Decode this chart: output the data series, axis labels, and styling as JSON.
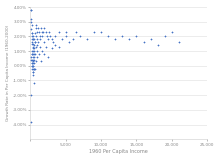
{
  "title": "",
  "xlabel": "1960 Per Capita Income",
  "ylabel": "Growth Rate in Per Capita Income (1960-2000)",
  "xlim": [
    0,
    25000
  ],
  "ylim": [
    -0.05,
    0.04
  ],
  "xticks": [
    0,
    5000,
    10000,
    15000,
    20000,
    25000
  ],
  "yticks": [
    -0.04,
    -0.03,
    -0.02,
    -0.01,
    0.0,
    0.01,
    0.02,
    0.03,
    0.04
  ],
  "marker_color": "#4472c4",
  "marker_size": 4,
  "points": [
    [
      130,
      0.032
    ],
    [
      145,
      0.025
    ],
    [
      160,
      0.038
    ],
    [
      180,
      0.02
    ],
    [
      200,
      0.022
    ],
    [
      220,
      0.018
    ],
    [
      240,
      0.015
    ],
    [
      260,
      0.028
    ],
    [
      280,
      0.01
    ],
    [
      290,
      0.016
    ],
    [
      300,
      0.022
    ],
    [
      310,
      0.008
    ],
    [
      320,
      0.012
    ],
    [
      330,
      0.018
    ],
    [
      340,
      0.006
    ],
    [
      350,
      0.01
    ],
    [
      360,
      0.02
    ],
    [
      380,
      0.013
    ],
    [
      390,
      0.018
    ],
    [
      400,
      0.008
    ],
    [
      420,
      0.015
    ],
    [
      440,
      0.003
    ],
    [
      460,
      0.006
    ],
    [
      480,
      0.01
    ],
    [
      500,
      0.014
    ],
    [
      520,
      0.018
    ],
    [
      540,
      0.004
    ],
    [
      560,
      0.008
    ],
    [
      580,
      0.012
    ],
    [
      600,
      0.016
    ],
    [
      120,
      -0.02
    ],
    [
      140,
      0.004
    ],
    [
      160,
      0.006
    ],
    [
      180,
      0.002
    ],
    [
      210,
      0.002
    ],
    [
      230,
      0.0
    ],
    [
      245,
      0.008
    ],
    [
      270,
      0.0
    ],
    [
      285,
      0.004
    ],
    [
      295,
      -0.002
    ],
    [
      315,
      -0.004
    ],
    [
      325,
      0.002
    ],
    [
      345,
      -0.002
    ],
    [
      355,
      0.0
    ],
    [
      375,
      0.004
    ],
    [
      395,
      -0.006
    ],
    [
      415,
      0.0
    ],
    [
      435,
      -0.004
    ],
    [
      455,
      -0.002
    ],
    [
      475,
      0.002
    ],
    [
      495,
      -0.002
    ],
    [
      515,
      -0.012
    ],
    [
      105,
      -0.038
    ],
    [
      650,
      0.022
    ],
    [
      700,
      0.016
    ],
    [
      750,
      0.026
    ],
    [
      800,
      0.02
    ],
    [
      850,
      0.028
    ],
    [
      900,
      0.018
    ],
    [
      950,
      0.014
    ],
    [
      1000,
      0.023
    ],
    [
      1100,
      0.026
    ],
    [
      1200,
      0.023
    ],
    [
      1300,
      0.02
    ],
    [
      1400,
      0.018
    ],
    [
      1500,
      0.026
    ],
    [
      1600,
      0.023
    ],
    [
      1700,
      0.02
    ],
    [
      1800,
      0.023
    ],
    [
      2000,
      0.026
    ],
    [
      2200,
      0.023
    ],
    [
      2400,
      0.02
    ],
    [
      2600,
      0.023
    ],
    [
      2800,
      0.02
    ],
    [
      3000,
      0.018
    ],
    [
      3200,
      0.016
    ],
    [
      3500,
      0.02
    ],
    [
      4000,
      0.023
    ],
    [
      4500,
      0.018
    ],
    [
      5000,
      0.02
    ],
    [
      5500,
      0.016
    ],
    [
      6000,
      0.018
    ],
    [
      6500,
      0.023
    ],
    [
      7000,
      0.02
    ],
    [
      8000,
      0.018
    ],
    [
      9000,
      0.023
    ],
    [
      10000,
      0.023
    ],
    [
      11000,
      0.02
    ],
    [
      12000,
      0.018
    ],
    [
      13000,
      0.02
    ],
    [
      14000,
      0.018
    ],
    [
      15000,
      0.02
    ],
    [
      16000,
      0.016
    ],
    [
      17000,
      0.018
    ],
    [
      18000,
      0.014
    ],
    [
      19000,
      0.02
    ],
    [
      20000,
      0.023
    ],
    [
      21000,
      0.016
    ],
    [
      750,
      0.013
    ],
    [
      900,
      0.01
    ],
    [
      1050,
      0.016
    ],
    [
      1300,
      0.013
    ],
    [
      1600,
      0.01
    ],
    [
      1900,
      0.016
    ],
    [
      2200,
      0.013
    ],
    [
      2500,
      0.018
    ],
    [
      3500,
      0.014
    ],
    [
      5000,
      0.023
    ],
    [
      700,
      0.008
    ],
    [
      1200,
      0.008
    ],
    [
      2000,
      0.008
    ],
    [
      3000,
      0.012
    ],
    [
      4000,
      0.013
    ],
    [
      600,
      -0.002
    ],
    [
      800,
      0.003
    ],
    [
      1000,
      0.006
    ],
    [
      1500,
      0.003
    ],
    [
      2500,
      0.006
    ],
    [
      100,
      0.038
    ],
    [
      115,
      0.03
    ]
  ]
}
